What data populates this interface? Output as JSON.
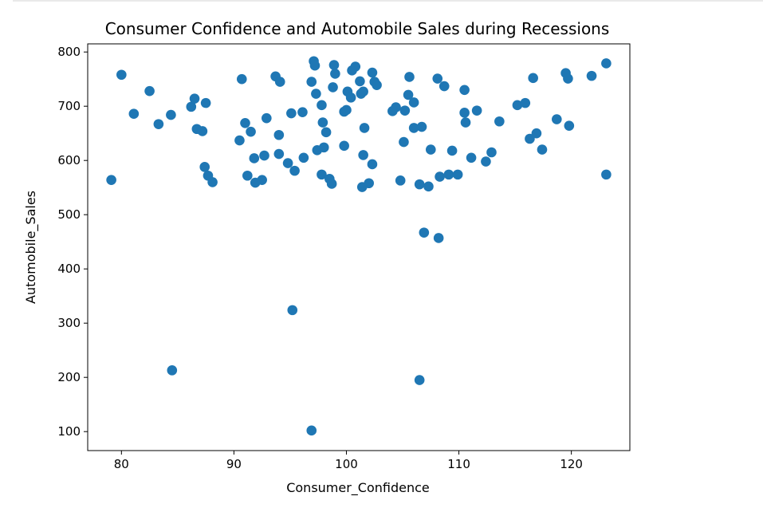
{
  "chart_data": {
    "type": "scatter",
    "title": "Consumer Confidence and Automobile Sales during Recessions",
    "xlabel": "Consumer_Confidence",
    "ylabel": "Automobile_Sales",
    "xlim": [
      77,
      125.2
    ],
    "ylim": [
      65,
      815
    ],
    "xticks": [
      "80",
      "90",
      "100",
      "110",
      "120"
    ],
    "yticks": [
      "100",
      "200",
      "300",
      "400",
      "500",
      "600",
      "700",
      "800"
    ],
    "grid": false,
    "marker_color": "#1f77b4",
    "points": [
      [
        79.1,
        564
      ],
      [
        80.0,
        758
      ],
      [
        81.1,
        686
      ],
      [
        82.5,
        728
      ],
      [
        83.3,
        667
      ],
      [
        84.4,
        684
      ],
      [
        84.5,
        213
      ],
      [
        86.2,
        699
      ],
      [
        86.5,
        714
      ],
      [
        86.7,
        658
      ],
      [
        87.2,
        654
      ],
      [
        87.4,
        588
      ],
      [
        87.5,
        706
      ],
      [
        87.7,
        572
      ],
      [
        88.1,
        560
      ],
      [
        90.5,
        637
      ],
      [
        90.7,
        750
      ],
      [
        91.0,
        669
      ],
      [
        91.2,
        572
      ],
      [
        91.5,
        653
      ],
      [
        91.8,
        604
      ],
      [
        91.9,
        559
      ],
      [
        92.5,
        564
      ],
      [
        92.7,
        609
      ],
      [
        92.9,
        678
      ],
      [
        93.7,
        755
      ],
      [
        94.0,
        612
      ],
      [
        94.1,
        745
      ],
      [
        94.0,
        647
      ],
      [
        94.8,
        595
      ],
      [
        95.1,
        687
      ],
      [
        95.2,
        324
      ],
      [
        95.4,
        581
      ],
      [
        96.1,
        689
      ],
      [
        96.2,
        605
      ],
      [
        96.9,
        102
      ],
      [
        96.9,
        745
      ],
      [
        97.1,
        783
      ],
      [
        97.2,
        775
      ],
      [
        97.3,
        723
      ],
      [
        97.4,
        619
      ],
      [
        97.8,
        574
      ],
      [
        97.8,
        702
      ],
      [
        97.9,
        670
      ],
      [
        98.0,
        624
      ],
      [
        98.2,
        652
      ],
      [
        98.5,
        566
      ],
      [
        98.7,
        557
      ],
      [
        98.8,
        735
      ],
      [
        98.9,
        776
      ],
      [
        99.0,
        760
      ],
      [
        99.8,
        627
      ],
      [
        99.8,
        690
      ],
      [
        100.0,
        693
      ],
      [
        100.1,
        727
      ],
      [
        100.4,
        716
      ],
      [
        100.5,
        766
      ],
      [
        100.8,
        773
      ],
      [
        101.2,
        746
      ],
      [
        101.3,
        723
      ],
      [
        101.4,
        551
      ],
      [
        101.5,
        610
      ],
      [
        101.5,
        727
      ],
      [
        101.6,
        660
      ],
      [
        102.0,
        558
      ],
      [
        102.3,
        593
      ],
      [
        102.3,
        762
      ],
      [
        102.5,
        745
      ],
      [
        102.7,
        739
      ],
      [
        104.1,
        691
      ],
      [
        104.4,
        698
      ],
      [
        104.8,
        563
      ],
      [
        105.1,
        634
      ],
      [
        105.2,
        692
      ],
      [
        105.5,
        721
      ],
      [
        105.6,
        754
      ],
      [
        106.0,
        660
      ],
      [
        106.0,
        707
      ],
      [
        106.5,
        556
      ],
      [
        106.7,
        662
      ],
      [
        106.9,
        467
      ],
      [
        106.5,
        195
      ],
      [
        107.3,
        552
      ],
      [
        107.5,
        620
      ],
      [
        108.1,
        751
      ],
      [
        108.2,
        457
      ],
      [
        108.3,
        570
      ],
      [
        108.7,
        737
      ],
      [
        109.1,
        574
      ],
      [
        109.4,
        618
      ],
      [
        109.9,
        574
      ],
      [
        110.5,
        730
      ],
      [
        110.5,
        688
      ],
      [
        110.6,
        670
      ],
      [
        111.1,
        605
      ],
      [
        111.6,
        692
      ],
      [
        112.4,
        598
      ],
      [
        112.9,
        615
      ],
      [
        113.6,
        672
      ],
      [
        115.2,
        702
      ],
      [
        115.9,
        706
      ],
      [
        116.3,
        640
      ],
      [
        116.6,
        752
      ],
      [
        116.9,
        650
      ],
      [
        117.4,
        620
      ],
      [
        118.7,
        676
      ],
      [
        119.5,
        761
      ],
      [
        119.7,
        751
      ],
      [
        119.8,
        664
      ],
      [
        121.8,
        756
      ],
      [
        123.1,
        779
      ],
      [
        123.1,
        574
      ]
    ]
  }
}
